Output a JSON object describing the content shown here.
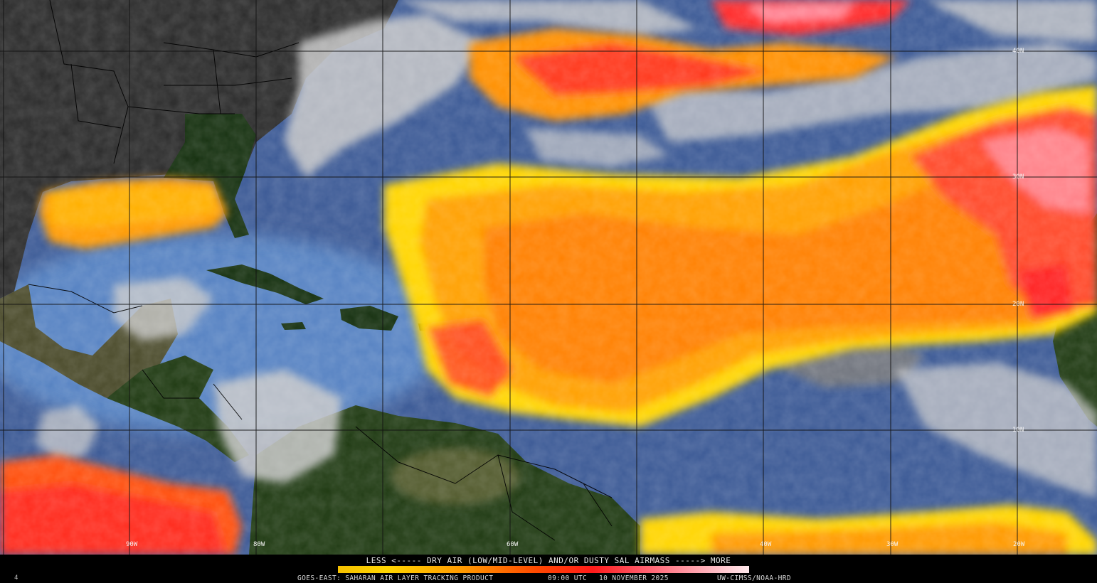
{
  "map": {
    "lat_labels": [
      "40N",
      "30N",
      "20N",
      "10N"
    ],
    "lon_labels": [
      "90W",
      "80W",
      "60W",
      "40W",
      "30W",
      "20W"
    ],
    "colors": {
      "ocean_clear": "#3c5a96",
      "ocean_shallow": "#5a88c8",
      "land": "#15300f",
      "land_dark": "#2a2a2a",
      "clouds": "#c9c9c9",
      "sal_yellow": "#ffd500",
      "sal_orange": "#ff8c00",
      "sal_red": "#ff2a1a",
      "sal_pink": "#ff7f8f",
      "grid": "#111111"
    }
  },
  "legend": {
    "scale_text": "LESS <----- DRY AIR (LOW/MID-LEVEL) AND/OR DUSTY SAL AIRMASS -----> MORE",
    "small_number": "4"
  },
  "footer": {
    "product": "GOES-EAST: SAHARAN AIR LAYER TRACKING PRODUCT",
    "time": "09:00 UTC",
    "date": "10 NOVEMBER 2025",
    "credit": "UW-CIMSS/NOAA-HRD"
  }
}
